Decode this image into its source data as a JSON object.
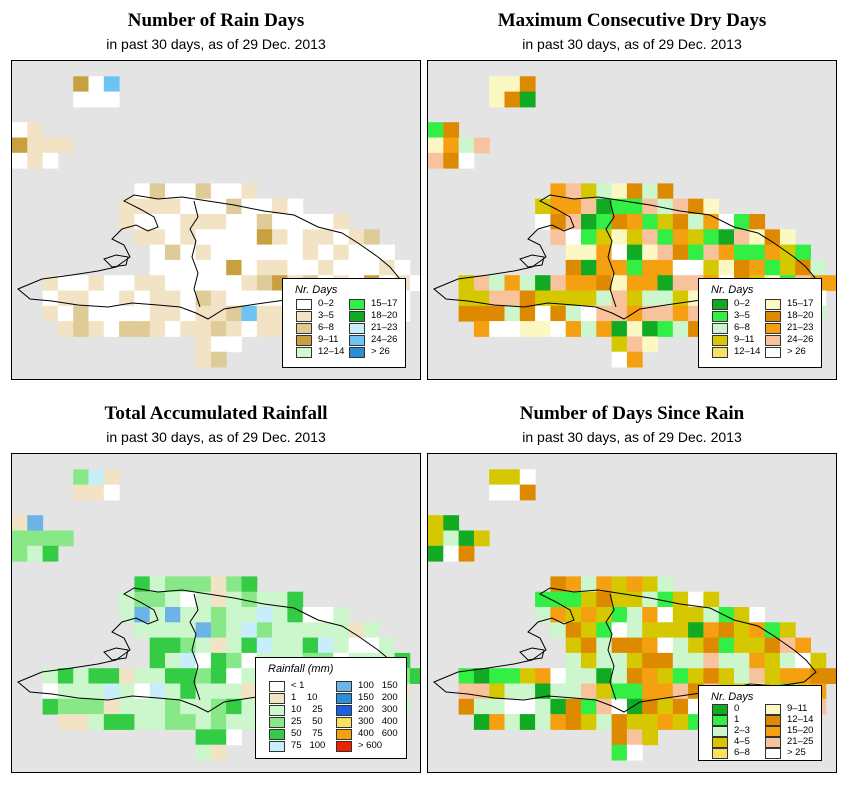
{
  "panels": [
    {
      "title": "Number of Rain Days",
      "subtitle": "in past 30 days, as of  29 Dec. 2013",
      "legend": {
        "title": "Nr. Days",
        "items": [
          {
            "label": "0–2",
            "color": "#ffffff"
          },
          {
            "label": "3–5",
            "color": "#f2e3c5"
          },
          {
            "label": "6–8",
            "color": "#decb97"
          },
          {
            "label": "9–11",
            "color": "#c8a040"
          },
          {
            "label": "12–14",
            "color": "#d2fad2"
          },
          {
            "label": "15–17",
            "color": "#33ee44"
          },
          {
            "label": "18–20",
            "color": "#11aa22"
          },
          {
            "label": "21–23",
            "color": "#c8eefc"
          },
          {
            "label": "24–26",
            "color": "#6cc4f4"
          },
          {
            "label": "> 26",
            "color": "#2a8fd8"
          }
        ]
      }
    },
    {
      "title": "Maximum Consecutive Dry Days",
      "subtitle": "in past 30 days, as of  29 Dec. 2013",
      "legend": {
        "title": "Nr. Days",
        "items": [
          {
            "label": "0–2",
            "color": "#11aa22"
          },
          {
            "label": "3–5",
            "color": "#33ee44"
          },
          {
            "label": "6–8",
            "color": "#ccf7cc"
          },
          {
            "label": "9–11",
            "color": "#d6c800"
          },
          {
            "label": "12–14",
            "color": "#f8e060"
          },
          {
            "label": "15–17",
            "color": "#fcf8c4"
          },
          {
            "label": "18–20",
            "color": "#dd8a00"
          },
          {
            "label": "21–23",
            "color": "#f4a010"
          },
          {
            "label": "24–26",
            "color": "#f8c29c"
          },
          {
            "label": "> 26",
            "color": "#ffffff"
          }
        ]
      }
    },
    {
      "title": "Total Accumulated Rainfall",
      "subtitle": "in past 30 days, as of  29 Dec. 2013",
      "legend": {
        "title": "Rainfall (mm)",
        "items": [
          {
            "label": "< 1",
            "color": "#ffffff"
          },
          {
            "label": "1    10",
            "color": "#f2e3c5"
          },
          {
            "label": "10    25",
            "color": "#ccf7cc"
          },
          {
            "label": "25    50",
            "color": "#88e888"
          },
          {
            "label": "50    75",
            "color": "#33cc44"
          },
          {
            "label": "75   100",
            "color": "#c8eefc"
          },
          {
            "label": "100   150",
            "color": "#6cb4e8"
          },
          {
            "label": "150   200",
            "color": "#2a8fd8"
          },
          {
            "label": "200   300",
            "color": "#1a5fe0"
          },
          {
            "label": "300   400",
            "color": "#f8e060"
          },
          {
            "label": "400   600",
            "color": "#f4a010"
          },
          {
            "label": "> 600",
            "color": "#ee2200"
          }
        ]
      }
    },
    {
      "title": "Number of Days Since Rain",
      "subtitle": "in past 30 days, as of  29 Dec. 2013",
      "legend": {
        "title": "Nr. Days",
        "items": [
          {
            "label": "0",
            "color": "#11aa22"
          },
          {
            "label": "1",
            "color": "#33ee44"
          },
          {
            "label": "2–3",
            "color": "#ccf7cc"
          },
          {
            "label": "4–5",
            "color": "#d6c800"
          },
          {
            "label": "6–8",
            "color": "#f8e060"
          },
          {
            "label": "9–11",
            "color": "#fcf8c4"
          },
          {
            "label": "12–14",
            "color": "#dd8a00"
          },
          {
            "label": "15–20",
            "color": "#f4a010"
          },
          {
            "label": "21–25",
            "color": "#f8c29c"
          },
          {
            "label": "> 25",
            "color": "#ffffff"
          }
        ]
      }
    }
  ]
}
